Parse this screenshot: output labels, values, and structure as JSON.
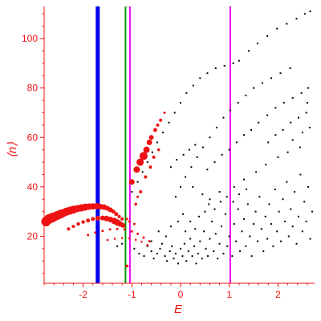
{
  "chart_data": {
    "type": "scatter",
    "xlabel": "E",
    "ylabel": "⟨n⟩",
    "xlim": [
      -2.8,
      2.75
    ],
    "ylim": [
      1,
      113
    ],
    "x_ticks": [
      -2,
      -1,
      0,
      1,
      2
    ],
    "y_ticks": [
      20,
      40,
      60,
      80,
      100
    ],
    "grid": false,
    "colors": {
      "axis": "#ee1111",
      "black_points": "#000000",
      "red_points": "#ee1111",
      "blue_line": "#0000ee",
      "green_line": "#009900",
      "magenta_line": "#ee00ee"
    },
    "vertical_lines": [
      {
        "x": -1.7,
        "color": "blue_line",
        "width": 5
      },
      {
        "x": -1.13,
        "color": "green_line",
        "width": 2
      },
      {
        "x": -1.04,
        "color": "magenta_line",
        "width": 2
      },
      {
        "x": 1.02,
        "color": "magenta_line",
        "width": 2
      }
    ],
    "red_series": [
      {
        "x": -2.76,
        "y": 26,
        "s": 6
      },
      {
        "x": -2.7,
        "y": 27,
        "s": 6
      },
      {
        "x": -2.64,
        "y": 27.5,
        "s": 6
      },
      {
        "x": -2.58,
        "y": 28,
        "s": 5.5
      },
      {
        "x": -2.52,
        "y": 28.5,
        "s": 5.5
      },
      {
        "x": -2.46,
        "y": 29,
        "s": 5.5
      },
      {
        "x": -2.4,
        "y": 29.5,
        "s": 5
      },
      {
        "x": -2.34,
        "y": 30,
        "s": 5
      },
      {
        "x": -2.27,
        "y": 30.4,
        "s": 5
      },
      {
        "x": -2.2,
        "y": 30.8,
        "s": 5
      },
      {
        "x": -2.12,
        "y": 31.2,
        "s": 4.5
      },
      {
        "x": -2.04,
        "y": 31.5,
        "s": 4.5
      },
      {
        "x": -1.96,
        "y": 31.8,
        "s": 4.5
      },
      {
        "x": -1.88,
        "y": 32,
        "s": 4
      },
      {
        "x": -1.8,
        "y": 32.1,
        "s": 4
      },
      {
        "x": -1.72,
        "y": 32.2,
        "s": 4
      },
      {
        "x": -1.64,
        "y": 32,
        "s": 3.5
      },
      {
        "x": -1.57,
        "y": 31.8,
        "s": 3.5
      },
      {
        "x": -1.5,
        "y": 31.3,
        "s": 3
      },
      {
        "x": -1.44,
        "y": 30.7,
        "s": 3
      },
      {
        "x": -1.38,
        "y": 30,
        "s": 2.5
      },
      {
        "x": -1.32,
        "y": 29,
        "s": 2.5
      },
      {
        "x": -1.26,
        "y": 28,
        "s": 2
      },
      {
        "x": -1.2,
        "y": 27,
        "s": 2
      },
      {
        "x": -2.3,
        "y": 23,
        "s": 2
      },
      {
        "x": -2.2,
        "y": 24,
        "s": 2
      },
      {
        "x": -2.1,
        "y": 25,
        "s": 2.2
      },
      {
        "x": -2.0,
        "y": 25.8,
        "s": 2.2
      },
      {
        "x": -1.9,
        "y": 26.4,
        "s": 2.5
      },
      {
        "x": -1.8,
        "y": 27,
        "s": 2.5
      },
      {
        "x": -1.7,
        "y": 27.3,
        "s": 3
      },
      {
        "x": -1.6,
        "y": 27.4,
        "s": 3
      },
      {
        "x": -1.52,
        "y": 27.2,
        "s": 3.5
      },
      {
        "x": -1.44,
        "y": 26.8,
        "s": 3.5
      },
      {
        "x": -1.36,
        "y": 26.2,
        "s": 4
      },
      {
        "x": -1.3,
        "y": 25.6,
        "s": 4
      },
      {
        "x": -1.24,
        "y": 25,
        "s": 3.5
      },
      {
        "x": -1.18,
        "y": 24.4,
        "s": 3
      },
      {
        "x": -1.9,
        "y": 20.5,
        "s": 1.5
      },
      {
        "x": -1.75,
        "y": 21.5,
        "s": 1.5
      },
      {
        "x": -1.6,
        "y": 22.2,
        "s": 1.5
      },
      {
        "x": -1.45,
        "y": 22.8,
        "s": 1.5
      },
      {
        "x": -1.3,
        "y": 23,
        "s": 1.5
      },
      {
        "x": -1.15,
        "y": 22.8,
        "s": 1.5
      },
      {
        "x": -1.0,
        "y": 22,
        "s": 1.5
      },
      {
        "x": -0.88,
        "y": 21,
        "s": 1.5
      },
      {
        "x": -0.76,
        "y": 19.5,
        "s": 1.5
      },
      {
        "x": -0.64,
        "y": 18,
        "s": 1.5
      },
      {
        "x": -1.5,
        "y": 18.5,
        "s": 1.3
      },
      {
        "x": -1.35,
        "y": 19,
        "s": 1.3
      },
      {
        "x": -1.2,
        "y": 19.3,
        "s": 1.3
      },
      {
        "x": -1.05,
        "y": 19.2,
        "s": 1.3
      },
      {
        "x": -0.92,
        "y": 18.6,
        "s": 1.3
      },
      {
        "x": -0.8,
        "y": 17.8,
        "s": 1.3
      },
      {
        "x": -0.68,
        "y": 16.5,
        "s": 1.3
      },
      {
        "x": -1.0,
        "y": 42,
        "s": 3.5
      },
      {
        "x": -0.9,
        "y": 47,
        "s": 4
      },
      {
        "x": -0.83,
        "y": 50,
        "s": 4.5
      },
      {
        "x": -0.76,
        "y": 52.5,
        "s": 5
      },
      {
        "x": -0.7,
        "y": 55,
        "s": 4
      },
      {
        "x": -0.64,
        "y": 58,
        "s": 3.5
      },
      {
        "x": -0.6,
        "y": 60,
        "s": 3
      },
      {
        "x": -0.52,
        "y": 63,
        "s": 2.5
      },
      {
        "x": -0.47,
        "y": 65,
        "s": 2
      },
      {
        "x": -0.41,
        "y": 67,
        "s": 2
      },
      {
        "x": -0.33,
        "y": 70,
        "s": 1.5
      },
      {
        "x": -0.55,
        "y": 52,
        "s": 2
      },
      {
        "x": -0.45,
        "y": 55,
        "s": 1.8
      },
      {
        "x": -0.62,
        "y": 48,
        "s": 2
      },
      {
        "x": -0.72,
        "y": 44,
        "s": 2
      },
      {
        "x": -0.82,
        "y": 38,
        "s": 2
      },
      {
        "x": -0.92,
        "y": 33,
        "s": 1.8
      },
      {
        "x": -0.88,
        "y": 36,
        "s": 1.5
      },
      {
        "x": -1.1,
        "y": 27,
        "s": 1.5
      },
      {
        "x": -0.95,
        "y": 25,
        "s": 1.5
      },
      {
        "x": -1.05,
        "y": 26,
        "s": 1.5
      },
      {
        "x": -1.1,
        "y": 8,
        "s": 1.8
      }
    ],
    "black_series": [
      {
        "x": -1.0,
        "y": 38
      },
      {
        "x": -0.88,
        "y": 42
      },
      {
        "x": -0.78,
        "y": 46
      },
      {
        "x": -0.68,
        "y": 50
      },
      {
        "x": -0.58,
        "y": 54
      },
      {
        "x": -0.48,
        "y": 58
      },
      {
        "x": -0.36,
        "y": 62
      },
      {
        "x": -0.24,
        "y": 66
      },
      {
        "x": -0.12,
        "y": 70
      },
      {
        "x": 0.0,
        "y": 74
      },
      {
        "x": 0.12,
        "y": 78
      },
      {
        "x": 0.26,
        "y": 81
      },
      {
        "x": 0.4,
        "y": 84
      },
      {
        "x": 0.55,
        "y": 86
      },
      {
        "x": 0.72,
        "y": 88
      },
      {
        "x": 0.9,
        "y": 89
      },
      {
        "x": 1.08,
        "y": 90
      },
      {
        "x": 1.2,
        "y": 91
      },
      {
        "x": -0.1,
        "y": 36
      },
      {
        "x": 0.0,
        "y": 40
      },
      {
        "x": 0.1,
        "y": 44
      },
      {
        "x": 0.22,
        "y": 48
      },
      {
        "x": 0.34,
        "y": 52
      },
      {
        "x": 0.46,
        "y": 56
      },
      {
        "x": 0.6,
        "y": 60
      },
      {
        "x": 0.74,
        "y": 64
      },
      {
        "x": 0.88,
        "y": 68
      },
      {
        "x": 1.02,
        "y": 71
      },
      {
        "x": 1.18,
        "y": 74
      },
      {
        "x": 1.34,
        "y": 77
      },
      {
        "x": 1.5,
        "y": 80
      },
      {
        "x": 1.68,
        "y": 82
      },
      {
        "x": 1.86,
        "y": 84
      },
      {
        "x": 2.05,
        "y": 86
      },
      {
        "x": 2.25,
        "y": 88
      },
      {
        "x": 1.4,
        "y": 95
      },
      {
        "x": 1.58,
        "y": 98
      },
      {
        "x": 1.78,
        "y": 101
      },
      {
        "x": 1.98,
        "y": 104
      },
      {
        "x": 2.18,
        "y": 106
      },
      {
        "x": 2.38,
        "y": 108
      },
      {
        "x": 2.55,
        "y": 110
      },
      {
        "x": 2.66,
        "y": 111
      },
      {
        "x": -0.2,
        "y": 48
      },
      {
        "x": -0.08,
        "y": 51
      },
      {
        "x": 0.06,
        "y": 53
      },
      {
        "x": 0.18,
        "y": 55
      },
      {
        "x": 0.3,
        "y": 57
      },
      {
        "x": 0.55,
        "y": 47
      },
      {
        "x": 0.7,
        "y": 50
      },
      {
        "x": 0.85,
        "y": 53
      },
      {
        "x": 1.0,
        "y": 55
      },
      {
        "x": 1.15,
        "y": 58
      },
      {
        "x": 1.3,
        "y": 61
      },
      {
        "x": 1.45,
        "y": 63
      },
      {
        "x": 1.6,
        "y": 66
      },
      {
        "x": 1.78,
        "y": 69
      },
      {
        "x": 1.95,
        "y": 72
      },
      {
        "x": 2.12,
        "y": 74
      },
      {
        "x": 2.3,
        "y": 76
      },
      {
        "x": 2.48,
        "y": 78
      },
      {
        "x": 2.62,
        "y": 80
      },
      {
        "x": 1.8,
        "y": 58
      },
      {
        "x": 1.95,
        "y": 61
      },
      {
        "x": 2.1,
        "y": 63
      },
      {
        "x": 2.26,
        "y": 66
      },
      {
        "x": 2.42,
        "y": 68
      },
      {
        "x": 2.58,
        "y": 70
      },
      {
        "x": 2.3,
        "y": 59
      },
      {
        "x": 2.5,
        "y": 62
      },
      {
        "x": 2.65,
        "y": 64
      },
      {
        "x": 2.6,
        "y": 74
      },
      {
        "x": 0.25,
        "y": 40
      },
      {
        "x": 0.45,
        "y": 37
      },
      {
        "x": 0.6,
        "y": 35
      },
      {
        "x": 0.8,
        "y": 38
      },
      {
        "x": 1.1,
        "y": 40
      },
      {
        "x": 1.3,
        "y": 43
      },
      {
        "x": 1.55,
        "y": 46
      },
      {
        "x": 1.75,
        "y": 49
      },
      {
        "x": 2.0,
        "y": 52
      },
      {
        "x": 2.2,
        "y": 54
      },
      {
        "x": 2.45,
        "y": 56
      },
      {
        "x": -1.3,
        "y": 16
      },
      {
        "x": -1.2,
        "y": 17
      },
      {
        "x": -0.95,
        "y": 15
      },
      {
        "x": -0.85,
        "y": 13
      },
      {
        "x": -0.75,
        "y": 12
      },
      {
        "x": -0.68,
        "y": 16
      },
      {
        "x": -0.6,
        "y": 14
      },
      {
        "x": -0.55,
        "y": 11
      },
      {
        "x": -0.48,
        "y": 13
      },
      {
        "x": -0.42,
        "y": 15
      },
      {
        "x": -0.38,
        "y": 17
      },
      {
        "x": -0.32,
        "y": 12
      },
      {
        "x": -0.28,
        "y": 10
      },
      {
        "x": -0.22,
        "y": 14
      },
      {
        "x": -0.18,
        "y": 16
      },
      {
        "x": -0.14,
        "y": 11
      },
      {
        "x": -0.1,
        "y": 13
      },
      {
        "x": -0.05,
        "y": 9
      },
      {
        "x": 0.0,
        "y": 15
      },
      {
        "x": 0.04,
        "y": 12
      },
      {
        "x": 0.08,
        "y": 17
      },
      {
        "x": 0.12,
        "y": 10
      },
      {
        "x": 0.16,
        "y": 14
      },
      {
        "x": 0.2,
        "y": 19
      },
      {
        "x": 0.24,
        "y": 12
      },
      {
        "x": 0.28,
        "y": 16
      },
      {
        "x": 0.32,
        "y": 9
      },
      {
        "x": 0.36,
        "y": 13
      },
      {
        "x": 0.4,
        "y": 18
      },
      {
        "x": 0.44,
        "y": 11
      },
      {
        "x": 0.48,
        "y": 22
      },
      {
        "x": 0.52,
        "y": 15
      },
      {
        "x": 0.56,
        "y": 12
      },
      {
        "x": 0.6,
        "y": 19
      },
      {
        "x": 0.64,
        "y": 26
      },
      {
        "x": 0.68,
        "y": 14
      },
      {
        "x": 0.72,
        "y": 21
      },
      {
        "x": 0.76,
        "y": 11
      },
      {
        "x": 0.8,
        "y": 17
      },
      {
        "x": 0.84,
        "y": 24
      },
      {
        "x": 0.88,
        "y": 13
      },
      {
        "x": 0.92,
        "y": 29
      },
      {
        "x": 0.96,
        "y": 16
      },
      {
        "x": 1.0,
        "y": 20
      },
      {
        "x": 1.06,
        "y": 12
      },
      {
        "x": 1.1,
        "y": 25
      },
      {
        "x": 1.14,
        "y": 18
      },
      {
        "x": 1.18,
        "y": 31
      },
      {
        "x": 1.22,
        "y": 14
      },
      {
        "x": 1.26,
        "y": 22
      },
      {
        "x": 1.3,
        "y": 27
      },
      {
        "x": 1.34,
        "y": 16
      },
      {
        "x": 1.38,
        "y": 33
      },
      {
        "x": 1.42,
        "y": 20
      },
      {
        "x": 1.46,
        "y": 12
      },
      {
        "x": 1.5,
        "y": 25
      },
      {
        "x": 1.54,
        "y": 30
      },
      {
        "x": 1.58,
        "y": 18
      },
      {
        "x": 1.62,
        "y": 36
      },
      {
        "x": 1.66,
        "y": 23
      },
      {
        "x": 1.7,
        "y": 14
      },
      {
        "x": 1.74,
        "y": 28
      },
      {
        "x": 1.78,
        "y": 19
      },
      {
        "x": 1.82,
        "y": 33
      },
      {
        "x": 1.86,
        "y": 25
      },
      {
        "x": 1.9,
        "y": 16
      },
      {
        "x": 1.94,
        "y": 39
      },
      {
        "x": 1.98,
        "y": 22
      },
      {
        "x": 2.02,
        "y": 30
      },
      {
        "x": 2.06,
        "y": 18
      },
      {
        "x": 2.1,
        "y": 35
      },
      {
        "x": 2.14,
        "y": 26
      },
      {
        "x": 2.18,
        "y": 42
      },
      {
        "x": 2.22,
        "y": 20
      },
      {
        "x": 2.26,
        "y": 31
      },
      {
        "x": 2.3,
        "y": 24
      },
      {
        "x": 2.34,
        "y": 38
      },
      {
        "x": 2.38,
        "y": 17
      },
      {
        "x": 2.42,
        "y": 28
      },
      {
        "x": 2.46,
        "y": 45
      },
      {
        "x": 2.5,
        "y": 22
      },
      {
        "x": 2.54,
        "y": 34
      },
      {
        "x": 2.58,
        "y": 26
      },
      {
        "x": 2.62,
        "y": 40
      },
      {
        "x": 2.66,
        "y": 19
      },
      {
        "x": 2.7,
        "y": 30
      },
      {
        "x": 0.1,
        "y": 22
      },
      {
        "x": 0.2,
        "y": 26
      },
      {
        "x": 0.3,
        "y": 23
      },
      {
        "x": 0.38,
        "y": 28
      },
      {
        "x": 0.5,
        "y": 30
      },
      {
        "x": 0.58,
        "y": 33
      },
      {
        "x": 0.7,
        "y": 31
      },
      {
        "x": 0.82,
        "y": 34
      },
      {
        "x": 0.95,
        "y": 36
      },
      {
        "x": 1.08,
        "y": 34
      },
      {
        "x": 1.2,
        "y": 37
      },
      {
        "x": 1.35,
        "y": 39
      },
      {
        "x": -0.3,
        "y": 20
      },
      {
        "x": -0.45,
        "y": 22
      },
      {
        "x": -0.2,
        "y": 24
      },
      {
        "x": -0.05,
        "y": 26
      },
      {
        "x": 0.05,
        "y": 29
      },
      {
        "x": -0.6,
        "y": 18
      }
    ]
  }
}
